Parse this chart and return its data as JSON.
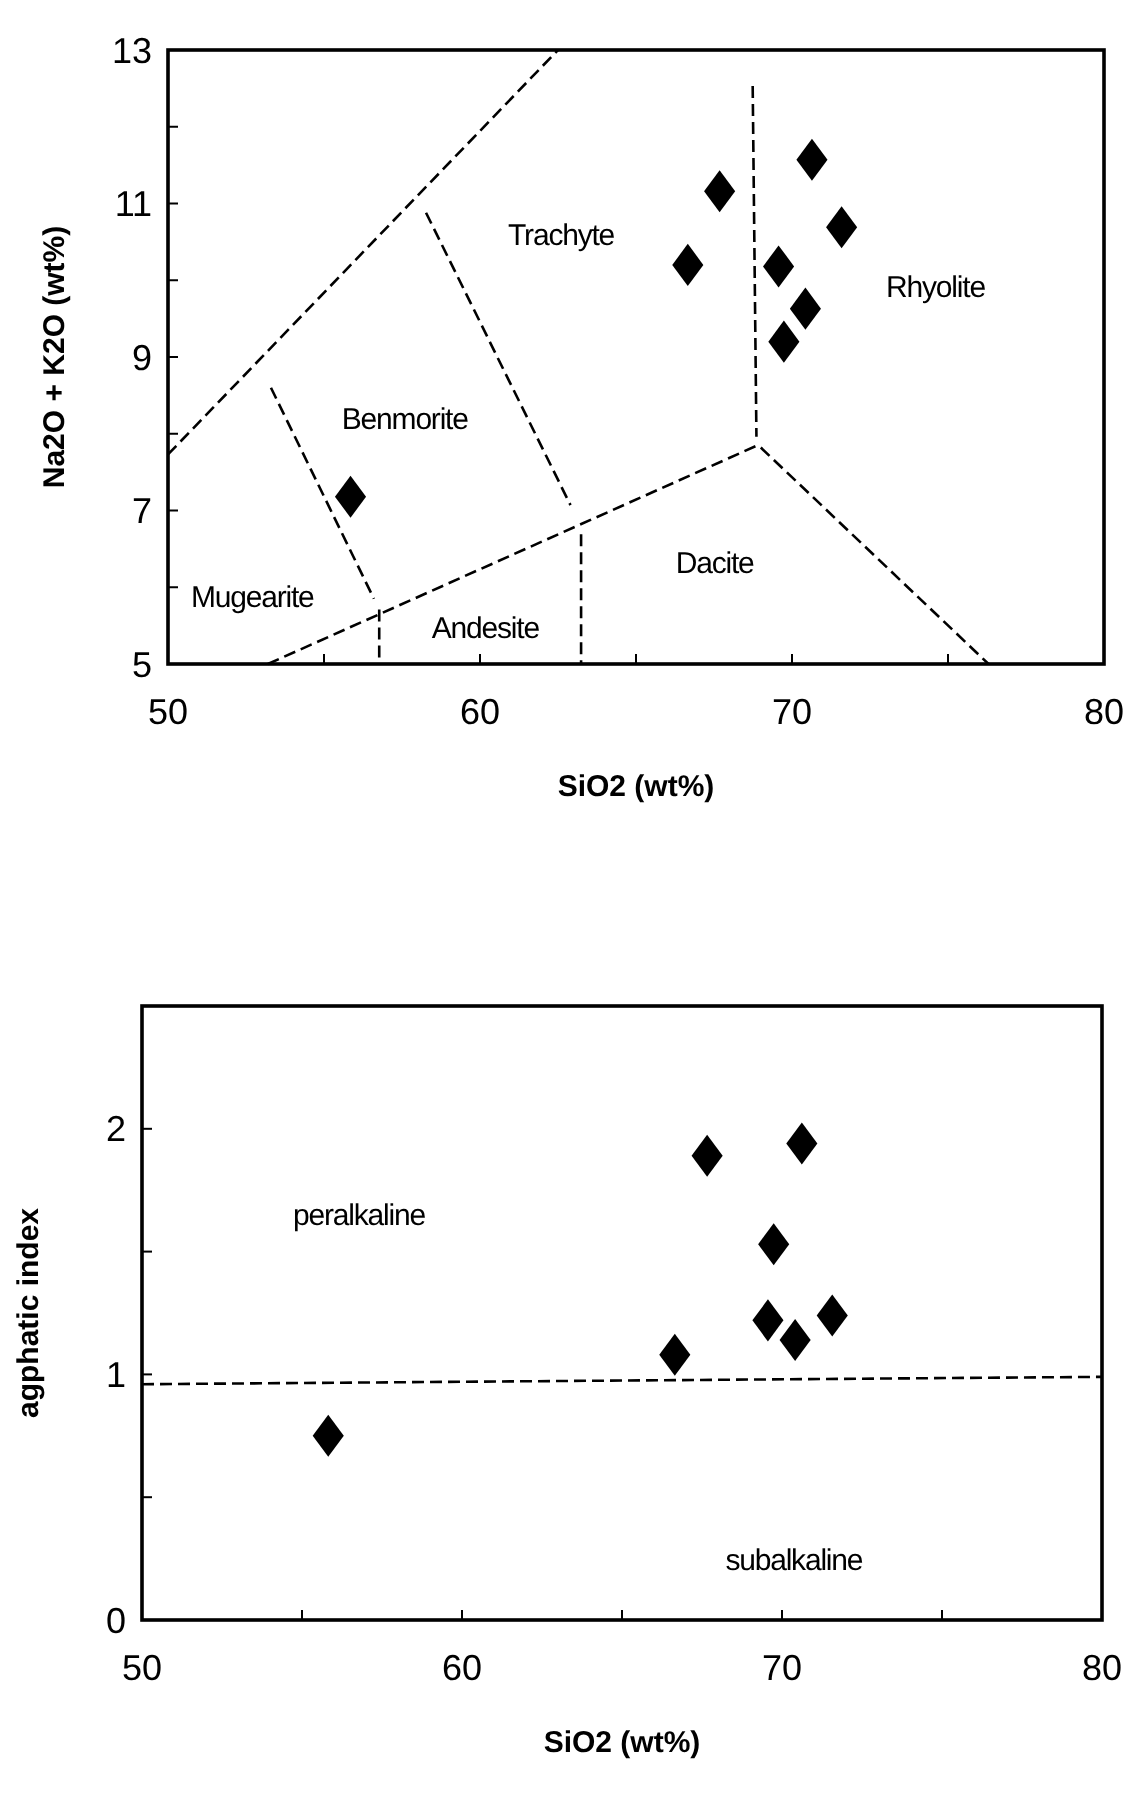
{
  "chart_data": [
    {
      "type": "scatter",
      "xlabel": "SiO2 (wt%)",
      "ylabel": "Na2O + K2O (wt%)",
      "xlim": [
        50,
        80
      ],
      "ylim": [
        5,
        13
      ],
      "xticks": [
        50,
        {
          "value": 55,
          "label": null
        },
        60,
        {
          "value": 65,
          "label": null
        },
        70,
        {
          "value": 75,
          "label": null
        },
        80
      ],
      "yticks": [
        5,
        {
          "value": 6,
          "label": null
        },
        7,
        {
          "value": 8,
          "label": null
        },
        9,
        {
          "value": 10,
          "label": null
        },
        11,
        {
          "value": 12,
          "label": null
        },
        13
      ],
      "grid": false,
      "series": [
        {
          "color": "#000000",
          "marker": "diamond",
          "x": [
            55.85,
            66.66,
            67.68,
            69.57,
            70.64,
            71.59,
            70.43,
            69.74
          ],
          "values": [
            7.18,
            10.2,
            11.16,
            10.18,
            11.57,
            10.69,
            9.63,
            9.2
          ]
        },
        {
          "type": "line",
          "color": "#000000",
          "marker": "none",
          "line_style": "dashed",
          "x": [
            50,
            62.5
          ],
          "values": [
            7.73,
            13
          ]
        },
        {
          "type": "line",
          "color": "#000000",
          "marker": "none",
          "line_style": "dashed",
          "x": [
            53.3,
            56.6
          ],
          "values": [
            8.6,
            5.85
          ]
        },
        {
          "type": "line",
          "color": "#000000",
          "marker": "none",
          "line_style": "dashed",
          "x": [
            58.27,
            62.9
          ],
          "values": [
            10.88,
            7.07
          ]
        },
        {
          "type": "line",
          "color": "#000000",
          "marker": "none",
          "line_style": "dashed",
          "x": [
            53.2,
            68.9
          ],
          "values": [
            5,
            7.85
          ]
        },
        {
          "type": "line",
          "color": "#000000",
          "marker": "none",
          "line_style": "dashed",
          "x": [
            68.74,
            68.86
          ],
          "values": [
            12.53,
            7.96
          ]
        },
        {
          "type": "line",
          "color": "#000000",
          "marker": "none",
          "line_style": "dashed",
          "x": [
            69,
            76.3
          ],
          "values": [
            7.82,
            5
          ]
        },
        {
          "type": "line",
          "color": "#000000",
          "marker": "none",
          "line_style": "dashed",
          "x": [
            56.77,
            56.77
          ],
          "values": [
            5.71,
            5
          ]
        },
        {
          "type": "line",
          "color": "#000000",
          "marker": "none",
          "line_style": "dashed",
          "x": [
            63.24,
            63.24
          ],
          "values": [
            6.69,
            5
          ]
        }
      ],
      "annotations": [
        "Trachyte",
        "Rhyolite",
        "Benmorite",
        "Mugearite",
        "Andesite",
        "Dacite"
      ]
    },
    {
      "type": "scatter",
      "xlabel": "SiO2 (wt%)",
      "ylabel": "agphatic index",
      "xlim": [
        50,
        80
      ],
      "ylim": [
        0,
        2.5
      ],
      "xticks": [
        50,
        {
          "value": 55,
          "label": null
        },
        60,
        {
          "value": 65,
          "label": null
        },
        70,
        {
          "value": 75,
          "label": null
        },
        80
      ],
      "yticks": [
        0,
        {
          "value": 0.5,
          "label": null
        },
        1,
        {
          "value": 1.5,
          "label": null
        },
        2
      ],
      "grid": false,
      "series": [
        {
          "color": "#000000",
          "marker": "diamond",
          "x": [
            55.82,
            66.65,
            67.66,
            70.62,
            69.74,
            69.56,
            70.41,
            71.57
          ],
          "values": [
            0.75,
            1.08,
            1.89,
            1.94,
            1.53,
            1.22,
            1.14,
            1.24
          ]
        },
        {
          "type": "line",
          "color": "#000000",
          "marker": "none",
          "line_style": "dashed",
          "x": [
            50,
            80
          ],
          "values": [
            0.96,
            0.99
          ]
        }
      ],
      "annotations": [
        "peralkaline",
        "subalkaline"
      ]
    }
  ]
}
